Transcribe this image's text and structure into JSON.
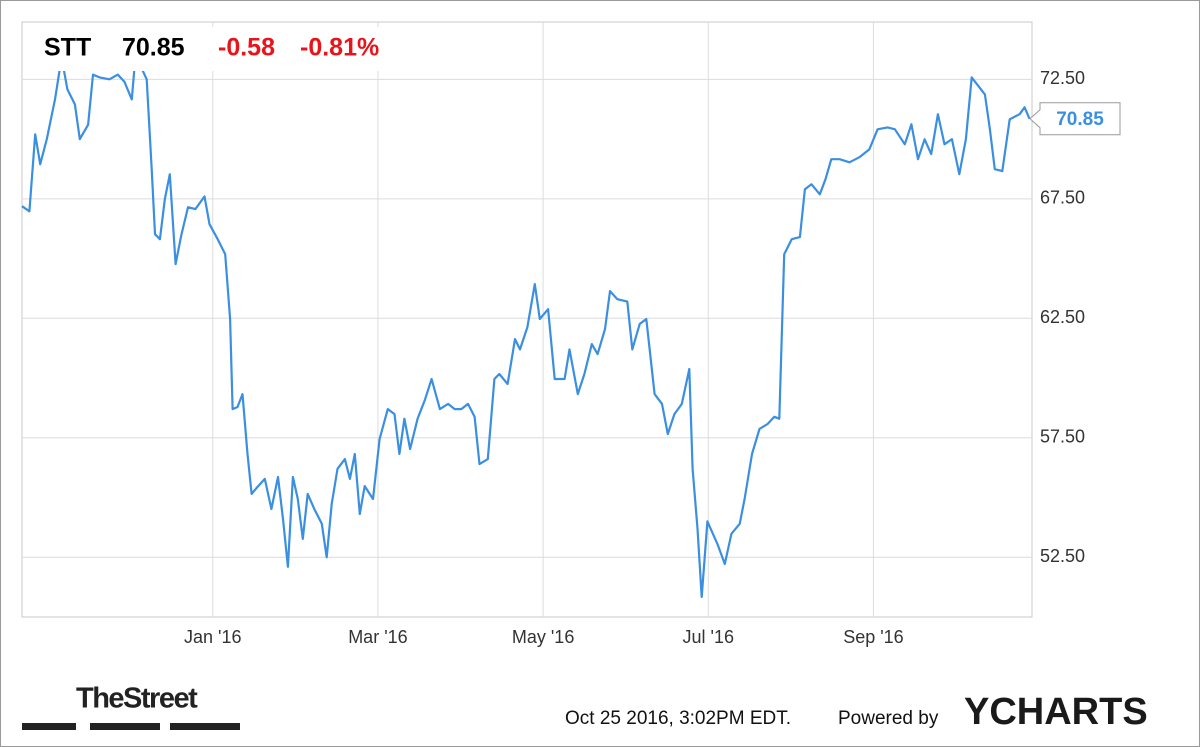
{
  "chart_data": {
    "type": "line",
    "ticker": "STT",
    "price": "70.85",
    "change": "-0.58",
    "change_pct": "-0.81%",
    "xlim": [
      -2.31,
      9.92
    ],
    "xticks": [
      {
        "value": 0,
        "label": "Jan '16"
      },
      {
        "value": 2,
        "label": "Mar '16"
      },
      {
        "value": 4,
        "label": "May '16"
      },
      {
        "value": 6,
        "label": "Jul '16"
      },
      {
        "value": 8,
        "label": "Sep '16"
      }
    ],
    "ylim": [
      50.0,
      74.9
    ],
    "yticks": [
      {
        "value": 52.5,
        "label": "52.50"
      },
      {
        "value": 57.5,
        "label": "57.50"
      },
      {
        "value": 62.5,
        "label": "62.50"
      },
      {
        "value": 67.5,
        "label": "67.50"
      },
      {
        "value": 72.5,
        "label": "72.50"
      }
    ],
    "grid": true,
    "series": [
      {
        "color": "#3b8fe0",
        "x": [
          -2.31,
          -2.22,
          -2.15,
          -2.09,
          -2.01,
          -1.91,
          -1.83,
          -1.76,
          -1.67,
          -1.61,
          -1.51,
          -1.45,
          -1.37,
          -1.25,
          -1.15,
          -1.07,
          -0.98,
          -0.93,
          -0.88,
          -0.8,
          -0.74,
          -0.7,
          -0.64,
          -0.58,
          -0.52,
          -0.45,
          -0.38,
          -0.3,
          -0.21,
          -0.1,
          -0.04,
          0.06,
          0.15,
          0.21,
          0.24,
          0.3,
          0.36,
          0.42,
          0.47,
          0.54,
          0.63,
          0.71,
          0.79,
          0.85,
          0.91,
          0.97,
          1.03,
          1.09,
          1.15,
          1.23,
          1.32,
          1.38,
          1.44,
          1.51,
          1.6,
          1.66,
          1.72,
          1.78,
          1.84,
          1.94,
          2.02,
          2.12,
          2.2,
          2.26,
          2.32,
          2.39,
          2.48,
          2.57,
          2.65,
          2.75,
          2.85,
          2.93,
          3.01,
          3.09,
          3.17,
          3.23,
          3.33,
          3.41,
          3.47,
          3.57,
          3.66,
          3.72,
          3.81,
          3.9,
          3.96,
          4.06,
          4.14,
          4.26,
          4.32,
          4.42,
          4.5,
          4.59,
          4.66,
          4.75,
          4.81,
          4.9,
          5.02,
          5.08,
          5.17,
          5.25,
          5.35,
          5.44,
          5.51,
          5.59,
          5.68,
          5.77,
          5.81,
          5.87,
          5.92,
          5.99,
          6.11,
          6.2,
          6.28,
          6.38,
          6.44,
          6.53,
          6.62,
          6.72,
          6.8,
          6.86,
          6.92,
          7.01,
          7.11,
          7.17,
          7.25,
          7.35,
          7.42,
          7.49,
          7.59,
          7.71,
          7.83,
          7.95,
          8.05,
          8.17,
          8.26,
          8.38,
          8.46,
          8.54,
          8.62,
          8.7,
          8.78,
          8.86,
          8.95,
          9.04,
          9.12,
          9.19,
          9.35,
          9.41,
          9.47,
          9.56,
          9.65,
          9.77,
          9.83,
          9.89
        ],
        "values": [
          67.19,
          66.98,
          70.2,
          68.95,
          70.0,
          71.66,
          73.42,
          72.08,
          71.45,
          70.0,
          70.6,
          72.7,
          72.58,
          72.5,
          72.7,
          72.4,
          71.66,
          73.75,
          73.1,
          72.5,
          68.74,
          66.02,
          65.81,
          67.5,
          68.53,
          64.77,
          66.0,
          67.15,
          67.07,
          67.6,
          66.44,
          65.81,
          65.18,
          62.47,
          58.7,
          58.79,
          59.33,
          56.82,
          55.15,
          55.44,
          55.78,
          54.52,
          55.86,
          54.1,
          52.1,
          55.86,
          54.94,
          53.27,
          55.15,
          54.52,
          53.9,
          52.5,
          54.73,
          56.2,
          56.61,
          55.78,
          56.82,
          54.31,
          55.48,
          54.94,
          57.45,
          58.7,
          58.49,
          56.82,
          58.3,
          57.03,
          58.3,
          59.1,
          59.96,
          58.7,
          58.92,
          58.7,
          58.7,
          58.92,
          58.38,
          56.4,
          56.61,
          59.96,
          60.17,
          59.75,
          61.63,
          61.2,
          62.13,
          63.93,
          62.47,
          62.88,
          59.96,
          59.96,
          61.2,
          59.33,
          60.17,
          61.42,
          61.0,
          62.05,
          63.64,
          63.3,
          63.2,
          61.2,
          62.26,
          62.47,
          59.33,
          58.92,
          57.66,
          58.49,
          58.92,
          60.38,
          56.2,
          53.7,
          50.84,
          54.0,
          53.06,
          52.22,
          53.48,
          53.9,
          54.94,
          56.82,
          57.87,
          58.08,
          58.38,
          58.3,
          65.18,
          65.81,
          65.9,
          67.9,
          68.11,
          67.69,
          68.32,
          69.16,
          69.16,
          69.03,
          69.24,
          69.57,
          70.41,
          70.49,
          70.41,
          69.78,
          70.62,
          69.16,
          69.99,
          69.37,
          71.04,
          69.78,
          70.0,
          68.53,
          70.0,
          72.58,
          71.87,
          70.41,
          68.74,
          68.66,
          70.83,
          71.04,
          71.33,
          70.85
        ]
      }
    ]
  },
  "footer": {
    "brand": "TheStreet",
    "timestamp": "Oct 25 2016, 3:02PM EDT.",
    "powered": "Powered by",
    "logo": "YCHARTS"
  }
}
